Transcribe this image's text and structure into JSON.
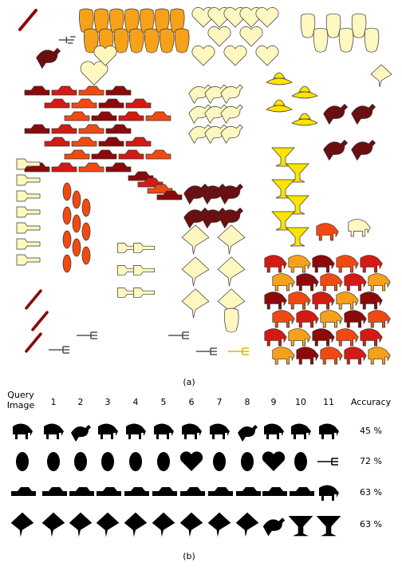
{
  "panel_a": {
    "caption": "(a)"
  },
  "panel_b": {
    "header": {
      "query": "Query Image",
      "ranks": [
        "1",
        "2",
        "3",
        "4",
        "5",
        "6",
        "7",
        "8",
        "9",
        "10",
        "11"
      ],
      "accuracy": "Accuracy"
    },
    "rows": [
      {
        "accuracy": "45 %"
      },
      {
        "accuracy": "72 %"
      },
      {
        "accuracy": "63 %"
      },
      {
        "accuracy": "63 %"
      }
    ],
    "caption": "(b)"
  }
}
